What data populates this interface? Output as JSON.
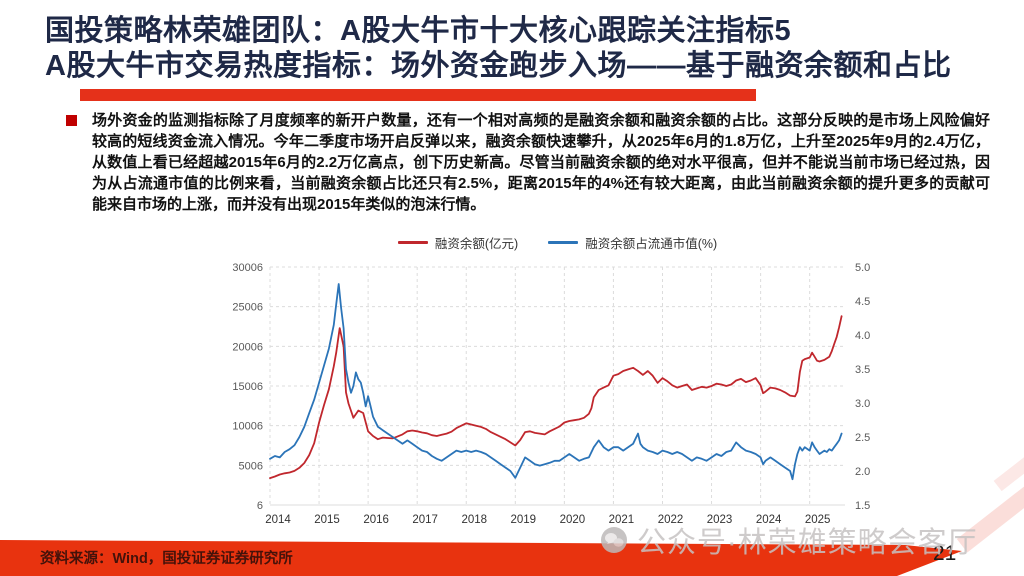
{
  "slide": {
    "title_line1": "国投策略林荣雄团队：A股大牛市十大核心跟踪关注指标5",
    "title_line2": "A股大牛市交易热度指标：场外资金跑步入场——基于融资余额和占比",
    "body": "场外资金的监测指标除了月度频率的新开户数量，还有一个相对高频的是融资余额和融资余额的占比。这部分反映的是市场上风险偏好较高的短线资金流入情况。今年二季度市场开启反弹以来，融资余额快速攀升，从2025年6月的1.8万亿，上升至2025年9月的2.4万亿，从数值上看已经超越2015年6月的2.2万亿高点，创下历史新高。尽管当前融资余额的绝对水平很高，但并不能说当前市场已经过热，因为从占流通市值的比例来看，当前融资余额占比还只有2.5%，距离2015年的4%还有较大距离，由此当前融资余额的提升更多的贡献可能来自市场的上涨，而并没有出现2015年类似的泡沫行情。",
    "watermark": "公众号·林荣雄策略会客厅",
    "footer_source": "资料来源：Wind，国投证券证券研究所",
    "page_number": "21"
  },
  "colors": {
    "title_navy": "#1f2947",
    "accent_red": "#e5311a",
    "line_red": "#c0272d",
    "line_blue": "#2b74b8",
    "grid": "#dcdcdc",
    "tick_label": "#595959",
    "x_label": "#333333"
  },
  "chart_data": {
    "type": "line",
    "title": "",
    "legend_position": "top-center",
    "grid": "dashed",
    "x_domain": [
      2014,
      2025.72
    ],
    "x_ticks": [
      2014,
      2015,
      2016,
      2017,
      2018,
      2019,
      2020,
      2021,
      2022,
      2023,
      2024,
      2025
    ],
    "left_axis": {
      "min": 6,
      "max": 30006,
      "ticks": [
        6,
        5006,
        10006,
        15006,
        20006,
        25006,
        30006
      ],
      "tick_labels": [
        "6",
        "5006",
        "10006",
        "15006",
        "20006",
        "25006",
        "30006"
      ]
    },
    "right_axis": {
      "min": 1.5,
      "max": 5.0,
      "ticks": [
        1.5,
        2.0,
        2.5,
        3.0,
        3.5,
        4.0,
        4.5,
        5.0
      ],
      "tick_labels": [
        "1.5",
        "2.0",
        "2.5",
        "3.0",
        "3.5",
        "4.0",
        "4.5",
        "5.0"
      ]
    },
    "series": [
      {
        "name": "融资余额(亿元)",
        "color": "#c0272d",
        "axis": "left",
        "points": [
          [
            2014.0,
            3400
          ],
          [
            2014.1,
            3600
          ],
          [
            2014.2,
            3850
          ],
          [
            2014.3,
            4000
          ],
          [
            2014.4,
            4100
          ],
          [
            2014.5,
            4300
          ],
          [
            2014.6,
            4700
          ],
          [
            2014.7,
            5300
          ],
          [
            2014.8,
            6300
          ],
          [
            2014.9,
            7800
          ],
          [
            2015.0,
            10400
          ],
          [
            2015.1,
            12600
          ],
          [
            2015.2,
            14600
          ],
          [
            2015.3,
            17500
          ],
          [
            2015.35,
            19200
          ],
          [
            2015.42,
            22300
          ],
          [
            2015.5,
            20000
          ],
          [
            2015.55,
            14200
          ],
          [
            2015.6,
            12800
          ],
          [
            2015.7,
            11000
          ],
          [
            2015.8,
            11900
          ],
          [
            2015.9,
            11600
          ],
          [
            2016.0,
            9300
          ],
          [
            2016.1,
            8700
          ],
          [
            2016.2,
            8300
          ],
          [
            2016.3,
            8500
          ],
          [
            2016.4,
            8450
          ],
          [
            2016.5,
            8400
          ],
          [
            2016.6,
            8650
          ],
          [
            2016.7,
            8900
          ],
          [
            2016.8,
            9300
          ],
          [
            2016.9,
            9400
          ],
          [
            2017.0,
            9300
          ],
          [
            2017.1,
            9150
          ],
          [
            2017.2,
            9050
          ],
          [
            2017.3,
            8800
          ],
          [
            2017.4,
            8700
          ],
          [
            2017.5,
            8850
          ],
          [
            2017.6,
            9000
          ],
          [
            2017.7,
            9250
          ],
          [
            2017.8,
            9700
          ],
          [
            2017.9,
            10000
          ],
          [
            2018.0,
            10300
          ],
          [
            2018.1,
            10150
          ],
          [
            2018.2,
            10000
          ],
          [
            2018.3,
            9850
          ],
          [
            2018.4,
            9600
          ],
          [
            2018.5,
            9200
          ],
          [
            2018.6,
            8900
          ],
          [
            2018.7,
            8600
          ],
          [
            2018.8,
            8300
          ],
          [
            2018.9,
            7900
          ],
          [
            2019.0,
            7500
          ],
          [
            2019.1,
            8200
          ],
          [
            2019.2,
            9200
          ],
          [
            2019.3,
            9300
          ],
          [
            2019.4,
            9100
          ],
          [
            2019.5,
            9000
          ],
          [
            2019.6,
            8900
          ],
          [
            2019.7,
            9300
          ],
          [
            2019.8,
            9600
          ],
          [
            2019.9,
            9900
          ],
          [
            2020.0,
            10400
          ],
          [
            2020.1,
            10600
          ],
          [
            2020.2,
            10700
          ],
          [
            2020.3,
            10800
          ],
          [
            2020.4,
            11000
          ],
          [
            2020.5,
            11500
          ],
          [
            2020.55,
            12200
          ],
          [
            2020.6,
            13600
          ],
          [
            2020.7,
            14500
          ],
          [
            2020.8,
            14800
          ],
          [
            2020.9,
            15100
          ],
          [
            2021.0,
            16300
          ],
          [
            2021.1,
            16500
          ],
          [
            2021.2,
            16900
          ],
          [
            2021.3,
            17100
          ],
          [
            2021.4,
            17300
          ],
          [
            2021.5,
            16900
          ],
          [
            2021.6,
            16400
          ],
          [
            2021.7,
            16900
          ],
          [
            2021.8,
            16300
          ],
          [
            2021.9,
            15400
          ],
          [
            2022.0,
            16000
          ],
          [
            2022.1,
            15600
          ],
          [
            2022.2,
            15100
          ],
          [
            2022.3,
            14800
          ],
          [
            2022.4,
            15000
          ],
          [
            2022.5,
            15200
          ],
          [
            2022.6,
            14500
          ],
          [
            2022.7,
            14700
          ],
          [
            2022.8,
            14900
          ],
          [
            2022.9,
            14800
          ],
          [
            2023.0,
            15000
          ],
          [
            2023.1,
            15300
          ],
          [
            2023.2,
            15200
          ],
          [
            2023.3,
            15000
          ],
          [
            2023.4,
            15200
          ],
          [
            2023.5,
            15700
          ],
          [
            2023.6,
            15900
          ],
          [
            2023.7,
            15500
          ],
          [
            2023.8,
            15700
          ],
          [
            2023.9,
            16000
          ],
          [
            2024.0,
            15100
          ],
          [
            2024.05,
            14100
          ],
          [
            2024.1,
            14300
          ],
          [
            2024.2,
            14800
          ],
          [
            2024.3,
            14700
          ],
          [
            2024.4,
            14500
          ],
          [
            2024.5,
            14200
          ],
          [
            2024.6,
            13800
          ],
          [
            2024.7,
            13700
          ],
          [
            2024.75,
            14300
          ],
          [
            2024.8,
            16800
          ],
          [
            2024.85,
            18200
          ],
          [
            2024.9,
            18400
          ],
          [
            2025.0,
            18600
          ],
          [
            2025.05,
            19200
          ],
          [
            2025.1,
            18700
          ],
          [
            2025.15,
            18200
          ],
          [
            2025.2,
            18100
          ],
          [
            2025.3,
            18300
          ],
          [
            2025.4,
            18700
          ],
          [
            2025.45,
            19400
          ],
          [
            2025.5,
            20300
          ],
          [
            2025.55,
            21200
          ],
          [
            2025.6,
            22400
          ],
          [
            2025.65,
            23800
          ]
        ]
      },
      {
        "name": "融资余额占流通市值(%)",
        "color": "#2b74b8",
        "axis": "right",
        "points": [
          [
            2014.0,
            2.18
          ],
          [
            2014.1,
            2.22
          ],
          [
            2014.2,
            2.2
          ],
          [
            2014.3,
            2.28
          ],
          [
            2014.4,
            2.32
          ],
          [
            2014.5,
            2.38
          ],
          [
            2014.6,
            2.5
          ],
          [
            2014.7,
            2.65
          ],
          [
            2014.8,
            2.85
          ],
          [
            2014.9,
            3.05
          ],
          [
            2015.0,
            3.3
          ],
          [
            2015.1,
            3.55
          ],
          [
            2015.2,
            3.8
          ],
          [
            2015.3,
            4.15
          ],
          [
            2015.35,
            4.45
          ],
          [
            2015.4,
            4.75
          ],
          [
            2015.45,
            4.4
          ],
          [
            2015.5,
            4.1
          ],
          [
            2015.55,
            3.5
          ],
          [
            2015.6,
            3.3
          ],
          [
            2015.65,
            3.15
          ],
          [
            2015.7,
            3.25
          ],
          [
            2015.75,
            3.45
          ],
          [
            2015.8,
            3.35
          ],
          [
            2015.85,
            3.3
          ],
          [
            2015.9,
            3.15
          ],
          [
            2015.95,
            2.95
          ],
          [
            2016.0,
            3.1
          ],
          [
            2016.05,
            2.95
          ],
          [
            2016.1,
            2.8
          ],
          [
            2016.2,
            2.65
          ],
          [
            2016.3,
            2.6
          ],
          [
            2016.4,
            2.55
          ],
          [
            2016.5,
            2.5
          ],
          [
            2016.6,
            2.45
          ],
          [
            2016.7,
            2.4
          ],
          [
            2016.8,
            2.45
          ],
          [
            2016.9,
            2.4
          ],
          [
            2017.0,
            2.35
          ],
          [
            2017.1,
            2.3
          ],
          [
            2017.2,
            2.28
          ],
          [
            2017.3,
            2.22
          ],
          [
            2017.4,
            2.18
          ],
          [
            2017.5,
            2.15
          ],
          [
            2017.6,
            2.2
          ],
          [
            2017.7,
            2.25
          ],
          [
            2017.8,
            2.3
          ],
          [
            2017.9,
            2.28
          ],
          [
            2018.0,
            2.3
          ],
          [
            2018.1,
            2.28
          ],
          [
            2018.2,
            2.3
          ],
          [
            2018.3,
            2.28
          ],
          [
            2018.4,
            2.25
          ],
          [
            2018.5,
            2.2
          ],
          [
            2018.6,
            2.15
          ],
          [
            2018.7,
            2.1
          ],
          [
            2018.8,
            2.05
          ],
          [
            2018.9,
            2.0
          ],
          [
            2019.0,
            1.9
          ],
          [
            2019.1,
            2.05
          ],
          [
            2019.2,
            2.2
          ],
          [
            2019.3,
            2.15
          ],
          [
            2019.4,
            2.1
          ],
          [
            2019.5,
            2.08
          ],
          [
            2019.6,
            2.1
          ],
          [
            2019.7,
            2.12
          ],
          [
            2019.8,
            2.15
          ],
          [
            2019.9,
            2.15
          ],
          [
            2020.0,
            2.2
          ],
          [
            2020.1,
            2.25
          ],
          [
            2020.2,
            2.2
          ],
          [
            2020.3,
            2.15
          ],
          [
            2020.4,
            2.18
          ],
          [
            2020.5,
            2.2
          ],
          [
            2020.6,
            2.35
          ],
          [
            2020.7,
            2.45
          ],
          [
            2020.8,
            2.35
          ],
          [
            2020.9,
            2.3
          ],
          [
            2021.0,
            2.35
          ],
          [
            2021.1,
            2.35
          ],
          [
            2021.2,
            2.3
          ],
          [
            2021.3,
            2.35
          ],
          [
            2021.4,
            2.4
          ],
          [
            2021.5,
            2.55
          ],
          [
            2021.55,
            2.4
          ],
          [
            2021.6,
            2.35
          ],
          [
            2021.7,
            2.3
          ],
          [
            2021.8,
            2.28
          ],
          [
            2021.9,
            2.25
          ],
          [
            2022.0,
            2.3
          ],
          [
            2022.1,
            2.28
          ],
          [
            2022.2,
            2.25
          ],
          [
            2022.3,
            2.28
          ],
          [
            2022.4,
            2.25
          ],
          [
            2022.5,
            2.2
          ],
          [
            2022.6,
            2.15
          ],
          [
            2022.7,
            2.2
          ],
          [
            2022.8,
            2.18
          ],
          [
            2022.9,
            2.15
          ],
          [
            2023.0,
            2.2
          ],
          [
            2023.1,
            2.25
          ],
          [
            2023.2,
            2.22
          ],
          [
            2023.3,
            2.28
          ],
          [
            2023.4,
            2.3
          ],
          [
            2023.5,
            2.42
          ],
          [
            2023.6,
            2.35
          ],
          [
            2023.7,
            2.3
          ],
          [
            2023.8,
            2.28
          ],
          [
            2023.9,
            2.25
          ],
          [
            2024.0,
            2.2
          ],
          [
            2024.05,
            2.1
          ],
          [
            2024.1,
            2.15
          ],
          [
            2024.2,
            2.2
          ],
          [
            2024.3,
            2.15
          ],
          [
            2024.4,
            2.1
          ],
          [
            2024.5,
            2.05
          ],
          [
            2024.6,
            2.0
          ],
          [
            2024.65,
            1.88
          ],
          [
            2024.7,
            2.1
          ],
          [
            2024.75,
            2.25
          ],
          [
            2024.8,
            2.35
          ],
          [
            2024.85,
            2.3
          ],
          [
            2024.9,
            2.35
          ],
          [
            2025.0,
            2.3
          ],
          [
            2025.05,
            2.42
          ],
          [
            2025.1,
            2.35
          ],
          [
            2025.15,
            2.3
          ],
          [
            2025.2,
            2.25
          ],
          [
            2025.3,
            2.3
          ],
          [
            2025.35,
            2.28
          ],
          [
            2025.4,
            2.32
          ],
          [
            2025.45,
            2.3
          ],
          [
            2025.5,
            2.35
          ],
          [
            2025.55,
            2.4
          ],
          [
            2025.6,
            2.45
          ],
          [
            2025.65,
            2.55
          ]
        ]
      }
    ]
  }
}
